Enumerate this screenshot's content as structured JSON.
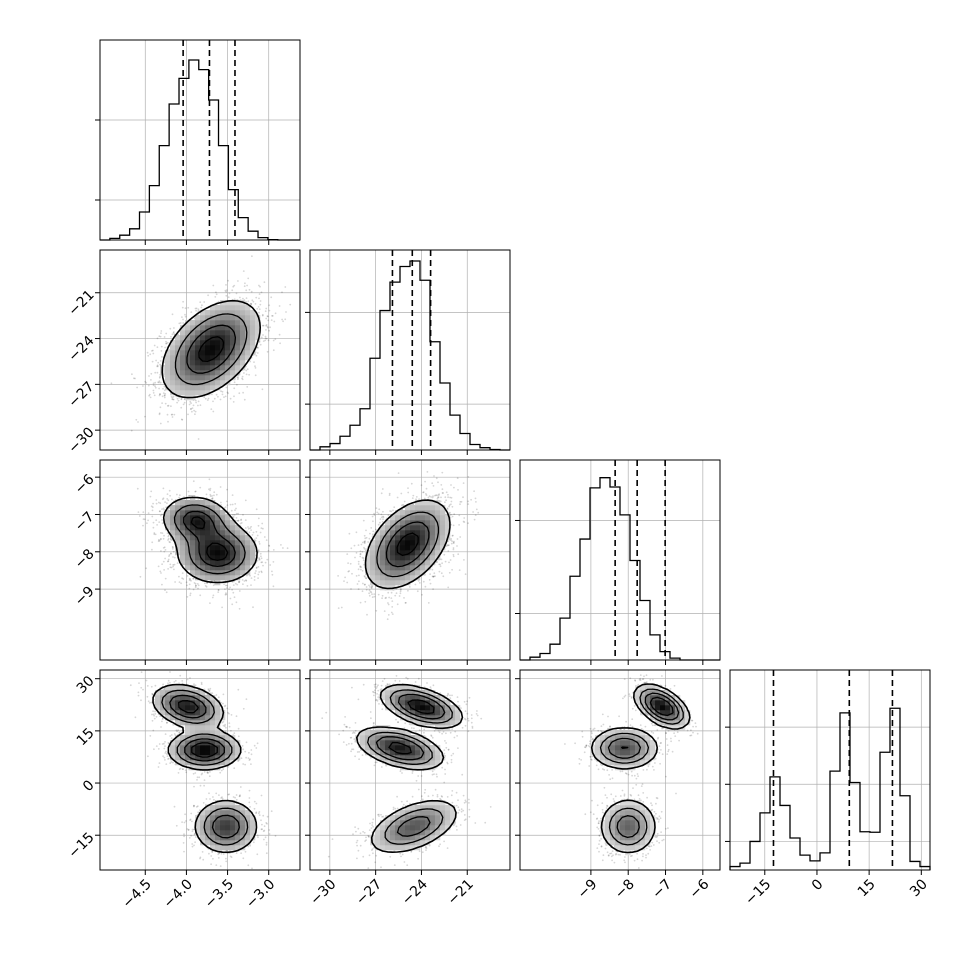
{
  "chart_data": {
    "type": "corner",
    "parameters": [
      {
        "range": [
          -5.05,
          -2.62
        ],
        "ticks": [
          -4.5,
          -4.0,
          -3.5,
          -3.0
        ],
        "tick_labels": [
          "−4.5",
          "−4.0",
          "−3.5",
          "−3.0"
        ]
      },
      {
        "range": [
          -31.3,
          -18.2
        ],
        "ticks": [
          -30,
          -27,
          -24,
          -21
        ],
        "tick_labels": [
          "−30",
          "−27",
          "−24",
          "−21"
        ]
      },
      {
        "range": [
          -10.9,
          -5.54
        ],
        "ticks": [
          -9,
          -8,
          -7,
          -6
        ],
        "tick_labels": [
          "−9",
          "−8",
          "−7",
          "−6"
        ]
      },
      {
        "range": [
          -25,
          32.5
        ],
        "ticks": [
          -15,
          0,
          15,
          30
        ],
        "tick_labels": [
          "−15",
          "0",
          "15",
          "30"
        ]
      }
    ],
    "histograms": [
      {
        "edges_start": -5.05,
        "bin_width": 0.12,
        "vmax": 2500,
        "counts": [
          0,
          20,
          60,
          140,
          350,
          680,
          1180,
          1700,
          2020,
          2250,
          2130,
          1750,
          1180,
          630,
          280,
          110,
          30,
          5,
          0,
          0
        ],
        "quantiles": [
          -4.04,
          -3.72,
          -3.41
        ]
      },
      {
        "edges_start": -31.3,
        "bin_width": 0.655,
        "vmax": 2180,
        "counts": [
          0,
          35,
          70,
          150,
          270,
          450,
          1000,
          1520,
          1830,
          2000,
          2060,
          1850,
          1180,
          730,
          380,
          180,
          60,
          25,
          5,
          0
        ],
        "quantiles": [
          -25.9,
          -24.6,
          -23.4
        ]
      },
      {
        "edges_start": -10.9,
        "bin_width": 0.268,
        "vmax": 2150,
        "counts": [
          0,
          30,
          70,
          170,
          450,
          900,
          1300,
          1850,
          1960,
          1860,
          1560,
          1070,
          640,
          270,
          90,
          20,
          0,
          0,
          0,
          0
        ],
        "quantiles": [
          -8.35,
          -7.76,
          -7.01
        ]
      },
      {
        "edges_start": -25,
        "bin_width": 2.875,
        "vmax": 3500,
        "counts": [
          60,
          120,
          500,
          1000,
          1630,
          1130,
          560,
          260,
          160,
          300,
          1730,
          2750,
          1530,
          670,
          660,
          2060,
          2830,
          1300,
          150,
          60
        ],
        "quantiles": [
          -12.5,
          9.3,
          21.7
        ]
      }
    ],
    "density_2d": [
      {
        "x_param": 0,
        "y_param": 1,
        "modes": [
          {
            "cx": -3.7,
            "cy": -24.7,
            "sx": 0.3,
            "sy": 1.6,
            "rho": 0.45,
            "w": 1
          }
        ]
      },
      {
        "x_param": 0,
        "y_param": 2,
        "modes": [
          {
            "cx": -3.62,
            "cy": -8.05,
            "sx": 0.26,
            "sy": 0.42,
            "rho": 0.0,
            "w": 0.62
          },
          {
            "cx": -3.88,
            "cy": -7.15,
            "sx": 0.22,
            "sy": 0.34,
            "rho": -0.1,
            "w": 0.38
          }
        ]
      },
      {
        "x_param": 1,
        "y_param": 2,
        "modes": [
          {
            "cx": -24.9,
            "cy": -7.8,
            "sx": 1.4,
            "sy": 0.6,
            "rho": 0.45,
            "w": 1
          }
        ]
      },
      {
        "x_param": 0,
        "y_param": 3,
        "modes": [
          {
            "cx": -3.98,
            "cy": 22,
            "sx": 0.22,
            "sy": 3.2,
            "rho": -0.3,
            "w": 0.33
          },
          {
            "cx": -3.78,
            "cy": 9.5,
            "sx": 0.22,
            "sy": 2.8,
            "rho": 0.0,
            "w": 0.34
          },
          {
            "cx": -3.52,
            "cy": -12.5,
            "sx": 0.2,
            "sy": 4.0,
            "rho": 0.0,
            "w": 0.33
          }
        ]
      },
      {
        "x_param": 1,
        "y_param": 3,
        "modes": [
          {
            "cx": -24.0,
            "cy": 22,
            "sx": 1.3,
            "sy": 3.0,
            "rho": -0.5,
            "w": 0.33
          },
          {
            "cx": -25.4,
            "cy": 10,
            "sx": 1.4,
            "sy": 3.0,
            "rho": -0.45,
            "w": 0.34
          },
          {
            "cx": -24.5,
            "cy": -12.5,
            "sx": 1.5,
            "sy": 4.0,
            "rho": 0.5,
            "w": 0.33
          }
        ]
      },
      {
        "x_param": 2,
        "y_param": 3,
        "modes": [
          {
            "cx": -7.1,
            "cy": 22,
            "sx": 0.35,
            "sy": 3.0,
            "rho": -0.5,
            "w": 0.33
          },
          {
            "cx": -8.1,
            "cy": 10,
            "sx": 0.45,
            "sy": 3.0,
            "rho": 0.0,
            "w": 0.34
          },
          {
            "cx": -8.0,
            "cy": -12.5,
            "sx": 0.38,
            "sy": 4.0,
            "rho": 0.0,
            "w": 0.33
          }
        ]
      }
    ],
    "grid": true,
    "colors": {
      "line": "#000000",
      "density": "#000000",
      "grid": "#b0b0b0",
      "background": "#ffffff"
    }
  }
}
